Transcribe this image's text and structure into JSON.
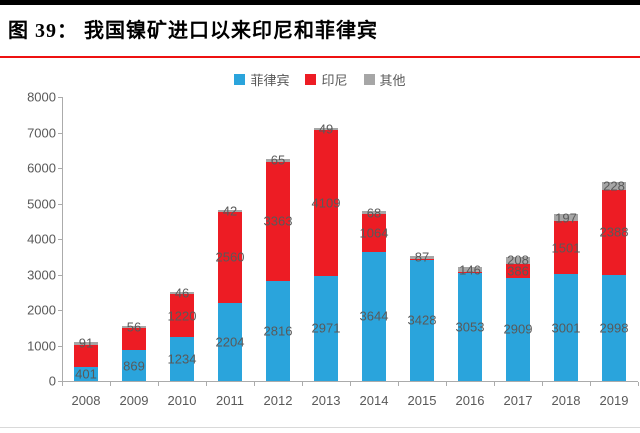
{
  "figure": {
    "title": "图 39：  我国镍矿进口以来印尼和菲律宾"
  },
  "chart_data": {
    "type": "bar",
    "stacked": true,
    "title": "",
    "xlabel": "",
    "ylabel": "",
    "grid": false,
    "legend_position": "top",
    "ylim": [
      0,
      8000
    ],
    "yticks": [
      0,
      1000,
      2000,
      3000,
      4000,
      5000,
      6000,
      7000,
      8000
    ],
    "categories": [
      "2008",
      "2009",
      "2010",
      "2011",
      "2012",
      "2013",
      "2014",
      "2015",
      "2016",
      "2017",
      "2018",
      "2019"
    ],
    "series": [
      {
        "name": "菲律宾",
        "color": "#2aa4dc",
        "values": [
          401,
          869,
          1234,
          2204,
          2816,
          2971,
          3644,
          3428,
          3053,
          2909,
          3001,
          2998
        ],
        "labels": [
          "401",
          "869",
          "1234",
          "2204",
          "2816",
          "2971",
          "3644",
          "3428",
          "3053",
          "2909",
          "3001",
          "2998"
        ]
      },
      {
        "name": "印尼",
        "color": "#ed1c24",
        "values": [
          610,
          620,
          1220,
          2560,
          3363,
          4109,
          1064,
          15,
          10,
          386,
          1501,
          2388
        ],
        "labels": [
          "",
          "",
          "1220",
          "2560",
          "3363",
          "4109",
          "1064",
          "",
          "",
          "386",
          "1501",
          "2388"
        ]
      },
      {
        "name": "其他",
        "color": "#a6a6a6",
        "values": [
          91,
          56,
          46,
          42,
          65,
          49,
          68,
          87,
          146,
          208,
          197,
          228
        ],
        "labels": [
          "91",
          "56",
          "46",
          "42",
          "65",
          "49",
          "68",
          "87",
          "146",
          "208",
          "197",
          "228"
        ]
      }
    ]
  },
  "colors": {
    "title_text": "#000000",
    "title_rule": "#ee1111",
    "axis_text": "#595959",
    "axis_line": "#ababab",
    "label_text": "#595959"
  }
}
